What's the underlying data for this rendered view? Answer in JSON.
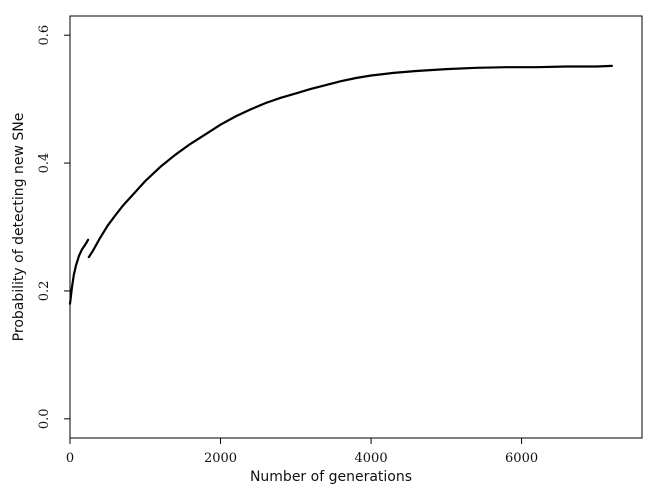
{
  "chart_data": {
    "type": "line",
    "title": "",
    "xlabel": "Number of generations",
    "ylabel": "Probability of detecting new SNe",
    "xlim": [
      0,
      7600
    ],
    "ylim": [
      -0.03,
      0.63
    ],
    "x_ticks": [
      0,
      2000,
      4000,
      6000
    ],
    "x_tick_labels": [
      "0",
      "2000",
      "4000",
      "6000"
    ],
    "y_ticks": [
      0.0,
      0.2,
      0.4,
      0.6
    ],
    "y_tick_labels": [
      "0.0",
      "0.2",
      "0.4",
      "0.6"
    ],
    "grid": false,
    "legend": false,
    "line_color": "#000000",
    "series": [
      {
        "x": [
          0,
          25,
          50,
          80,
          120,
          160,
          200,
          240
        ],
        "y": [
          0.18,
          0.205,
          0.225,
          0.24,
          0.255,
          0.265,
          0.272,
          0.28
        ]
      },
      {
        "x": [
          250,
          300,
          400,
          500,
          600,
          700,
          800,
          1000,
          1200,
          1400,
          1600,
          1800,
          2000,
          2200,
          2400,
          2600,
          2800,
          3000,
          3200,
          3400,
          3600,
          3800,
          4000,
          4300,
          4600,
          5000,
          5400,
          5800,
          6200,
          6600,
          7000,
          7200
        ],
        "y": [
          0.253,
          0.262,
          0.283,
          0.302,
          0.318,
          0.333,
          0.346,
          0.372,
          0.394,
          0.413,
          0.43,
          0.445,
          0.46,
          0.473,
          0.484,
          0.494,
          0.502,
          0.509,
          0.516,
          0.522,
          0.528,
          0.533,
          0.537,
          0.541,
          0.544,
          0.547,
          0.549,
          0.55,
          0.55,
          0.551,
          0.551,
          0.552
        ]
      }
    ]
  }
}
